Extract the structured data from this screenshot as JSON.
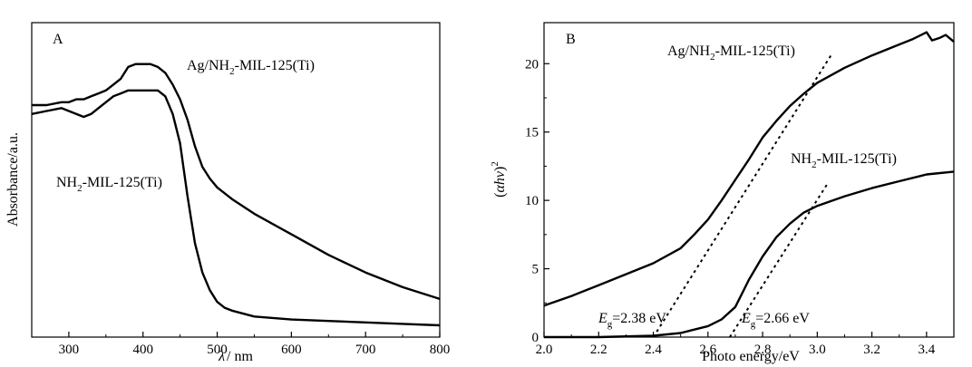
{
  "chart_data": [
    {
      "type": "line",
      "panel_label": "A",
      "xlabel": {
        "var": "λ",
        "unit": "/ nm"
      },
      "ylabel": "Absorbance/a.u.",
      "xlim": [
        250,
        800
      ],
      "ylim": [
        0,
        1
      ],
      "x_ticks": [
        "300",
        "400",
        "500",
        "600",
        "700",
        "800"
      ],
      "y_ticks_labeled": false,
      "grid": false,
      "series": [
        {
          "name": "Ag/NH2-MIL-125(Ti)",
          "label": {
            "pre": "Ag/NH",
            "sub": "2",
            "post": "-MIL-125(Ti)"
          },
          "x": [
            250,
            270,
            290,
            300,
            310,
            320,
            330,
            340,
            350,
            360,
            370,
            380,
            390,
            400,
            410,
            420,
            430,
            440,
            450,
            460,
            470,
            480,
            490,
            500,
            520,
            550,
            600,
            650,
            700,
            750,
            800
          ],
          "y": [
            0.79,
            0.79,
            0.8,
            0.8,
            0.81,
            0.81,
            0.82,
            0.83,
            0.84,
            0.86,
            0.88,
            0.92,
            0.93,
            0.93,
            0.93,
            0.92,
            0.9,
            0.86,
            0.81,
            0.74,
            0.65,
            0.58,
            0.54,
            0.51,
            0.47,
            0.42,
            0.35,
            0.28,
            0.22,
            0.17,
            0.13
          ]
        },
        {
          "name": "NH2-MIL-125(Ti)",
          "label": {
            "pre": "NH",
            "sub": "2",
            "post": "-MIL-125(Ti)"
          },
          "x": [
            250,
            270,
            290,
            300,
            310,
            320,
            330,
            340,
            350,
            360,
            370,
            380,
            390,
            400,
            410,
            420,
            430,
            440,
            450,
            460,
            465,
            470,
            480,
            490,
            500,
            510,
            520,
            550,
            600,
            650,
            700,
            750,
            800
          ],
          "y": [
            0.76,
            0.77,
            0.78,
            0.77,
            0.76,
            0.75,
            0.76,
            0.78,
            0.8,
            0.82,
            0.83,
            0.84,
            0.84,
            0.84,
            0.84,
            0.84,
            0.82,
            0.76,
            0.66,
            0.48,
            0.4,
            0.32,
            0.22,
            0.16,
            0.12,
            0.1,
            0.09,
            0.07,
            0.06,
            0.055,
            0.05,
            0.045,
            0.04
          ]
        }
      ]
    },
    {
      "type": "line",
      "panel_label": "B",
      "xlabel": "Photo energy/eV",
      "ylabel": {
        "pre": "(",
        "alpha": "α",
        "h": "h",
        "nu": "ν",
        "close": ")",
        "sup": "2"
      },
      "xlim": [
        2.0,
        3.5
      ],
      "ylim": [
        0,
        23
      ],
      "x_ticks": [
        "2.0",
        "2.2",
        "2.4",
        "2.6",
        "2.8",
        "3.0",
        "3.2",
        "3.4"
      ],
      "y_ticks": [
        "0",
        "5",
        "10",
        "15",
        "20"
      ],
      "grid": false,
      "series": [
        {
          "name": "Ag/NH2-MIL-125(Ti)",
          "label": {
            "pre": "Ag/NH",
            "sub": "2",
            "post": "-MIL-125(Ti)"
          },
          "x": [
            2.0,
            2.1,
            2.2,
            2.3,
            2.4,
            2.5,
            2.55,
            2.6,
            2.65,
            2.7,
            2.75,
            2.8,
            2.85,
            2.9,
            2.95,
            3.0,
            3.1,
            3.2,
            3.3,
            3.35,
            3.4,
            3.42,
            3.45,
            3.47,
            3.5
          ],
          "y": [
            2.3,
            3.0,
            3.8,
            4.6,
            5.4,
            6.5,
            7.5,
            8.6,
            10.0,
            11.5,
            13.0,
            14.6,
            15.8,
            16.9,
            17.8,
            18.6,
            19.7,
            20.6,
            21.4,
            21.8,
            22.3,
            21.7,
            21.9,
            22.1,
            21.6
          ]
        },
        {
          "name": "NH2-MIL-125(Ti)",
          "label": {
            "pre": "NH",
            "sub": "2",
            "post": "-MIL-125(Ti)"
          },
          "x": [
            2.0,
            2.2,
            2.4,
            2.5,
            2.6,
            2.65,
            2.7,
            2.72,
            2.75,
            2.8,
            2.85,
            2.9,
            2.95,
            3.0,
            3.1,
            3.2,
            3.3,
            3.4,
            3.5
          ],
          "y": [
            0.0,
            0.0,
            0.1,
            0.3,
            0.8,
            1.3,
            2.2,
            3.0,
            4.2,
            5.9,
            7.3,
            8.3,
            9.1,
            9.6,
            10.3,
            10.9,
            11.4,
            11.9,
            12.1
          ]
        }
      ],
      "tangents": [
        {
          "x": [
            2.4,
            3.05
          ],
          "y": [
            0,
            20.6
          ]
        },
        {
          "x": [
            2.68,
            3.04
          ],
          "y": [
            0,
            11.3
          ]
        }
      ],
      "annotations": [
        {
          "sym": "E",
          "sub": "g",
          "value": "=2.38 eV"
        },
        {
          "sym": "E",
          "sub": "g",
          "value": "=2.66 eV"
        }
      ]
    }
  ]
}
